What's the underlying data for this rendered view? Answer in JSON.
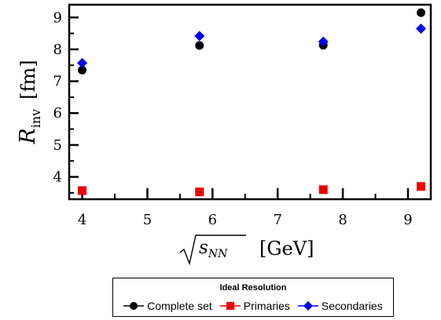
{
  "chart_data": {
    "type": "scatter",
    "xlabel": "[GeV]",
    "ylabel": "[fm]",
    "xlim": [
      3.8,
      9.35
    ],
    "ylim": [
      3.3,
      9.4
    ],
    "xticks": [
      4,
      5,
      6,
      7,
      8,
      9
    ],
    "yticks": [
      4,
      5,
      6,
      7,
      8,
      9
    ],
    "grid": false,
    "legend": {
      "title": "Ideal Resolution",
      "placement": "bottom-center"
    },
    "series": [
      {
        "name": "Complete set",
        "marker": "circle",
        "color": "#000000",
        "x": [
          4.0,
          5.8,
          7.7,
          9.2
        ],
        "y": [
          7.35,
          8.12,
          8.13,
          9.15
        ]
      },
      {
        "name": "Primaries",
        "marker": "square",
        "color": "#ee0000",
        "x": [
          4.0,
          5.8,
          7.7,
          9.2
        ],
        "y": [
          3.57,
          3.53,
          3.6,
          3.7
        ]
      },
      {
        "name": "Secondaries",
        "marker": "diamond",
        "color": "#0000ee",
        "x": [
          4.0,
          5.8,
          7.7,
          9.2
        ],
        "y": [
          7.57,
          8.42,
          8.24,
          8.65
        ]
      }
    ]
  }
}
